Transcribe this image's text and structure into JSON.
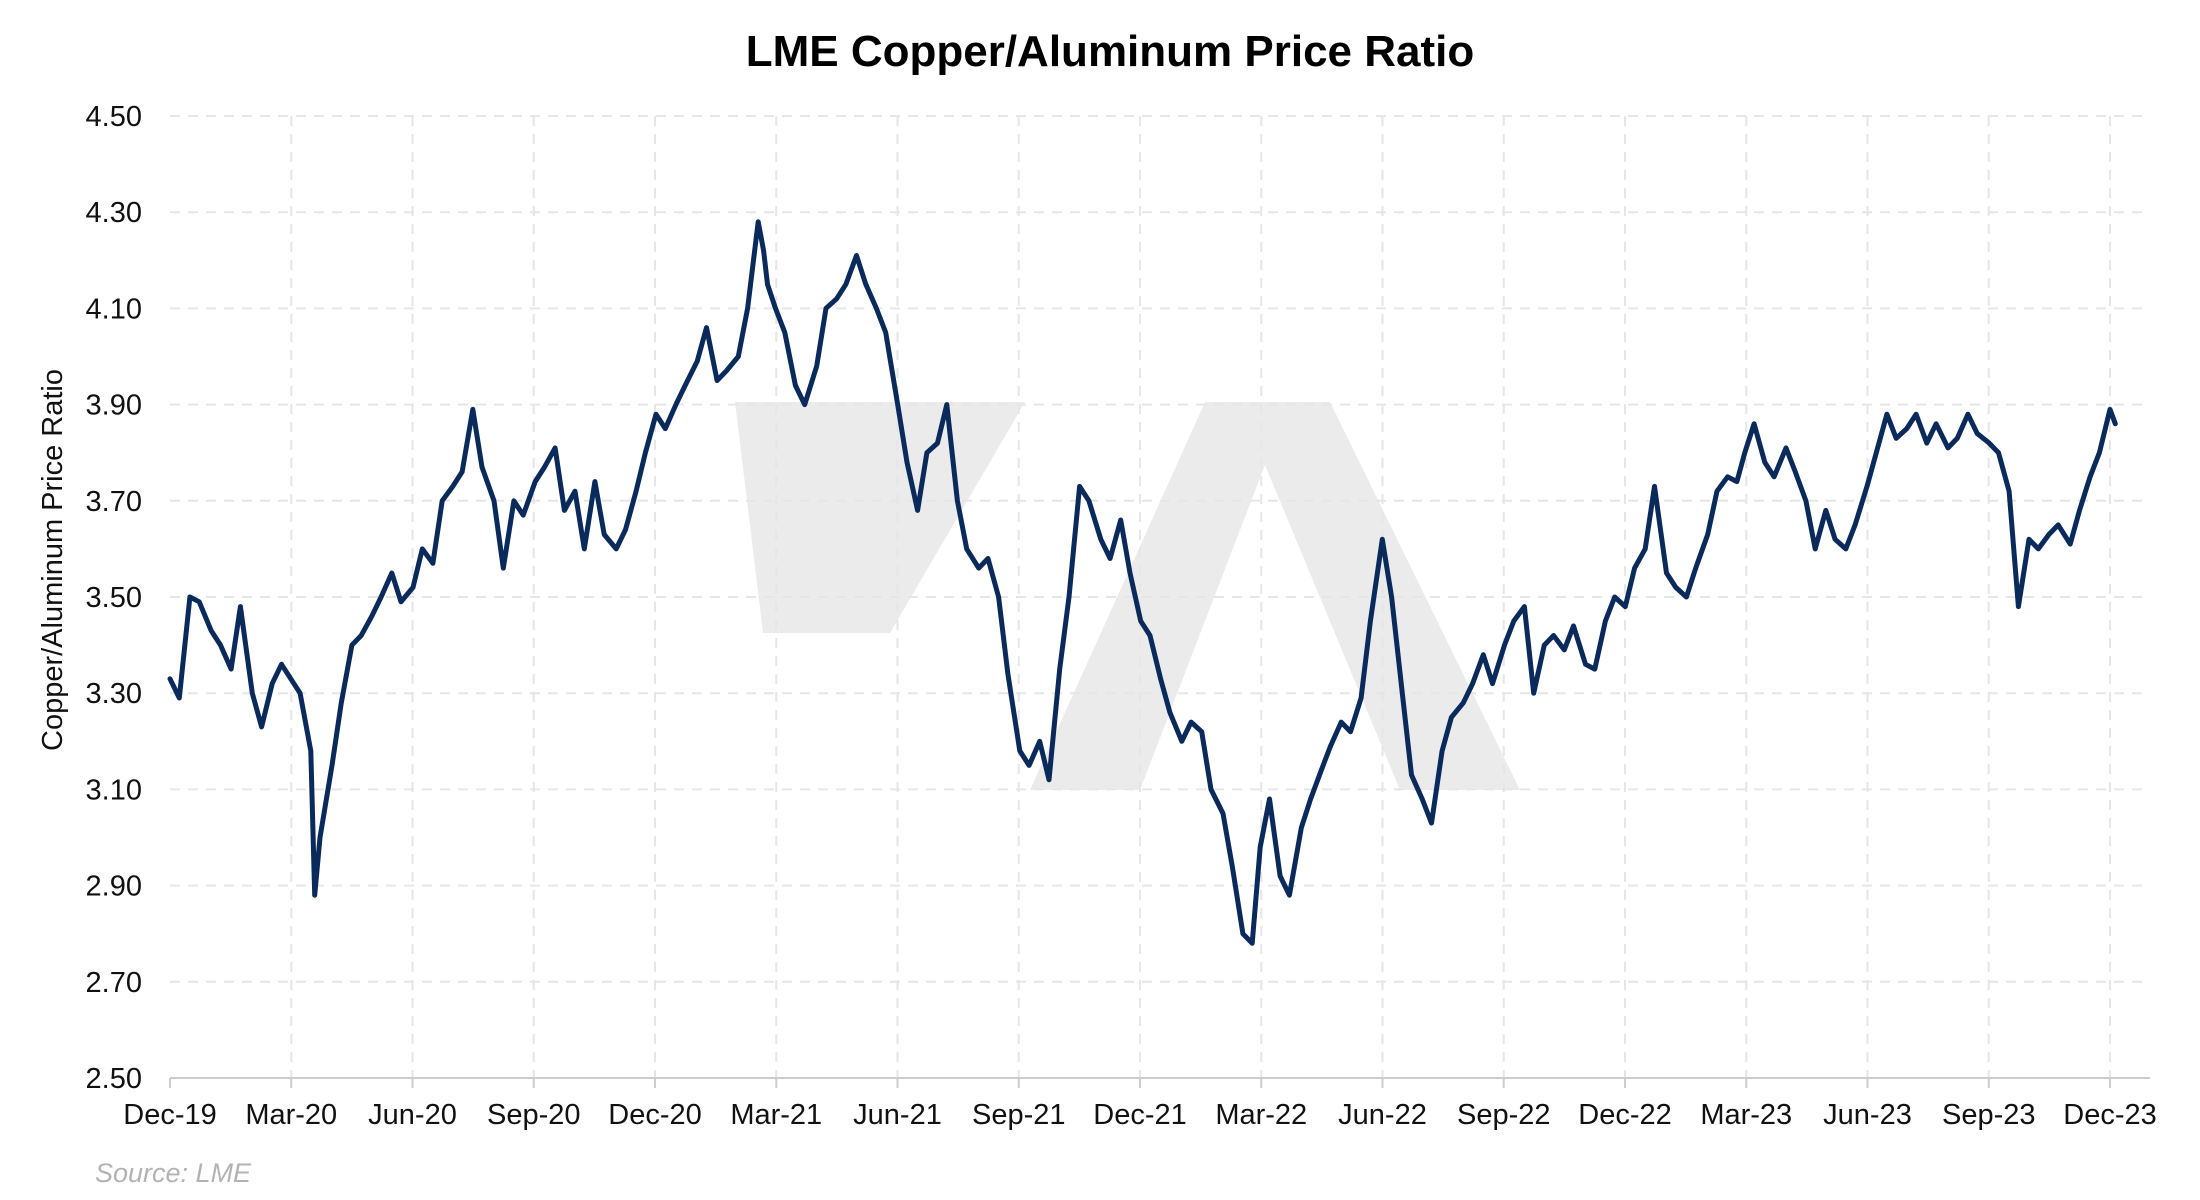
{
  "chart_data": {
    "type": "line",
    "title": "LME Copper/Aluminum Price Ratio",
    "xlabel": "",
    "ylabel": "Copper/Aluminum Price Ratio",
    "source": "Source: LME",
    "ylim": [
      2.5,
      4.5
    ],
    "yticks": [
      "2.50",
      "2.70",
      "2.90",
      "3.10",
      "3.30",
      "3.50",
      "3.70",
      "3.90",
      "4.10",
      "4.30",
      "4.50"
    ],
    "xlim": [
      "2019-12",
      "2023-12"
    ],
    "xticks": [
      "Dec-19",
      "Mar-20",
      "Jun-20",
      "Sep-20",
      "Dec-20",
      "Mar-21",
      "Jun-21",
      "Sep-21",
      "Dec-21",
      "Mar-22",
      "Jun-22",
      "Sep-22",
      "Dec-22",
      "Mar-23",
      "Jun-23",
      "Sep-23",
      "Dec-23"
    ],
    "grid": true,
    "line_color": "#0b2a5c",
    "grid_color": "#e6e6e6",
    "series": [
      {
        "name": "",
        "x": [
          "2019-12-01",
          "2019-12-08",
          "2019-12-16",
          "2019-12-23",
          "2020-01-01",
          "2020-01-08",
          "2020-01-16",
          "2020-01-23",
          "2020-02-01",
          "2020-02-08",
          "2020-02-16",
          "2020-02-23",
          "2020-03-01",
          "2020-03-08",
          "2020-03-16",
          "2020-03-19",
          "2020-03-23",
          "2020-04-01",
          "2020-04-08",
          "2020-04-16",
          "2020-04-23",
          "2020-05-01",
          "2020-05-08",
          "2020-05-16",
          "2020-05-23",
          "2020-06-01",
          "2020-06-08",
          "2020-06-16",
          "2020-06-23",
          "2020-07-01",
          "2020-07-08",
          "2020-07-16",
          "2020-07-23",
          "2020-08-01",
          "2020-08-08",
          "2020-08-16",
          "2020-08-23",
          "2020-09-01",
          "2020-09-08",
          "2020-09-16",
          "2020-09-23",
          "2020-10-01",
          "2020-10-08",
          "2020-10-16",
          "2020-10-23",
          "2020-11-01",
          "2020-11-08",
          "2020-11-16",
          "2020-11-23",
          "2020-12-01",
          "2020-12-08",
          "2020-12-16",
          "2020-12-23",
          "2021-01-01",
          "2021-01-08",
          "2021-01-16",
          "2021-01-23",
          "2021-02-01",
          "2021-02-08",
          "2021-02-16",
          "2021-02-20",
          "2021-02-23",
          "2021-03-01",
          "2021-03-08",
          "2021-03-16",
          "2021-03-23",
          "2021-04-01",
          "2021-04-08",
          "2021-04-16",
          "2021-04-23",
          "2021-05-01",
          "2021-05-08",
          "2021-05-16",
          "2021-05-23",
          "2021-06-01",
          "2021-06-08",
          "2021-06-16",
          "2021-06-23",
          "2021-07-01",
          "2021-07-08",
          "2021-07-16",
          "2021-07-23",
          "2021-08-01",
          "2021-08-08",
          "2021-08-16",
          "2021-08-23",
          "2021-09-01",
          "2021-09-08",
          "2021-09-16",
          "2021-09-23",
          "2021-10-01",
          "2021-10-08",
          "2021-10-16",
          "2021-10-23",
          "2021-11-01",
          "2021-11-08",
          "2021-11-16",
          "2021-11-23",
          "2021-12-01",
          "2021-12-08",
          "2021-12-16",
          "2021-12-23",
          "2022-01-01",
          "2022-01-08",
          "2022-01-16",
          "2022-01-23",
          "2022-02-01",
          "2022-02-08",
          "2022-02-16",
          "2022-02-23",
          "2022-03-01",
          "2022-03-08",
          "2022-03-16",
          "2022-03-23",
          "2022-04-01",
          "2022-04-08",
          "2022-04-16",
          "2022-04-23",
          "2022-05-01",
          "2022-05-08",
          "2022-05-16",
          "2022-05-23",
          "2022-06-01",
          "2022-06-08",
          "2022-06-16",
          "2022-06-23",
          "2022-07-01",
          "2022-07-08",
          "2022-07-16",
          "2022-07-23",
          "2022-08-01",
          "2022-08-08",
          "2022-08-16",
          "2022-08-23",
          "2022-09-01",
          "2022-09-08",
          "2022-09-16",
          "2022-09-23",
          "2022-10-01",
          "2022-10-08",
          "2022-10-16",
          "2022-10-23",
          "2022-11-01",
          "2022-11-08",
          "2022-11-16",
          "2022-11-23",
          "2022-12-01",
          "2022-12-08",
          "2022-12-16",
          "2022-12-23",
          "2023-01-01",
          "2023-01-08",
          "2023-01-16",
          "2023-01-23",
          "2023-02-01",
          "2023-02-08",
          "2023-02-16",
          "2023-02-23",
          "2023-03-01",
          "2023-03-08",
          "2023-03-16",
          "2023-03-23",
          "2023-04-01",
          "2023-04-08",
          "2023-04-16",
          "2023-04-23",
          "2023-05-01",
          "2023-05-08",
          "2023-05-16",
          "2023-05-23",
          "2023-06-01",
          "2023-06-08",
          "2023-06-16",
          "2023-06-23",
          "2023-07-01",
          "2023-07-08",
          "2023-07-16",
          "2023-07-23",
          "2023-08-01",
          "2023-08-08",
          "2023-08-16",
          "2023-08-23",
          "2023-09-01",
          "2023-09-08",
          "2023-09-16",
          "2023-09-23",
          "2023-10-01",
          "2023-10-08",
          "2023-10-16",
          "2023-10-23",
          "2023-11-01",
          "2023-11-08",
          "2023-11-16",
          "2023-11-23",
          "2023-12-01",
          "2023-12-05"
        ],
        "y": [
          3.33,
          3.29,
          3.5,
          3.49,
          3.43,
          3.4,
          3.35,
          3.48,
          3.3,
          3.23,
          3.32,
          3.36,
          3.33,
          3.3,
          3.18,
          2.88,
          3.0,
          3.15,
          3.28,
          3.4,
          3.42,
          3.46,
          3.5,
          3.55,
          3.49,
          3.52,
          3.6,
          3.57,
          3.7,
          3.73,
          3.76,
          3.89,
          3.77,
          3.7,
          3.56,
          3.7,
          3.67,
          3.74,
          3.77,
          3.81,
          3.68,
          3.72,
          3.6,
          3.74,
          3.63,
          3.6,
          3.64,
          3.72,
          3.8,
          3.88,
          3.85,
          3.9,
          3.94,
          3.99,
          4.06,
          3.95,
          3.97,
          4.0,
          4.1,
          4.28,
          4.22,
          4.15,
          4.1,
          4.05,
          3.94,
          3.9,
          3.98,
          4.1,
          4.12,
          4.15,
          4.21,
          4.15,
          4.1,
          4.05,
          3.9,
          3.78,
          3.68,
          3.8,
          3.82,
          3.9,
          3.7,
          3.6,
          3.56,
          3.58,
          3.5,
          3.34,
          3.18,
          3.15,
          3.2,
          3.12,
          3.35,
          3.5,
          3.73,
          3.7,
          3.62,
          3.58,
          3.66,
          3.55,
          3.45,
          3.42,
          3.33,
          3.26,
          3.2,
          3.24,
          3.22,
          3.1,
          3.05,
          2.94,
          2.8,
          2.78,
          2.98,
          3.08,
          2.92,
          2.88,
          3.02,
          3.08,
          3.14,
          3.19,
          3.24,
          3.22,
          3.29,
          3.45,
          3.62,
          3.5,
          3.3,
          3.13,
          3.08,
          3.03,
          3.18,
          3.25,
          3.28,
          3.32,
          3.38,
          3.32,
          3.4,
          3.45,
          3.48,
          3.3,
          3.4,
          3.42,
          3.39,
          3.44,
          3.36,
          3.35,
          3.45,
          3.5,
          3.48,
          3.56,
          3.6,
          3.73,
          3.55,
          3.52,
          3.5,
          3.56,
          3.63,
          3.72,
          3.75,
          3.74,
          3.8,
          3.86,
          3.78,
          3.75,
          3.81,
          3.76,
          3.7,
          3.6,
          3.68,
          3.62,
          3.6,
          3.65,
          3.73,
          3.8,
          3.88,
          3.83,
          3.85,
          3.88,
          3.82,
          3.86,
          3.81,
          3.83,
          3.88,
          3.84,
          3.82,
          3.8,
          3.72,
          3.48,
          3.62,
          3.6,
          3.63,
          3.65,
          3.61,
          3.68,
          3.75,
          3.8,
          3.89,
          3.86
        ]
      }
    ]
  }
}
